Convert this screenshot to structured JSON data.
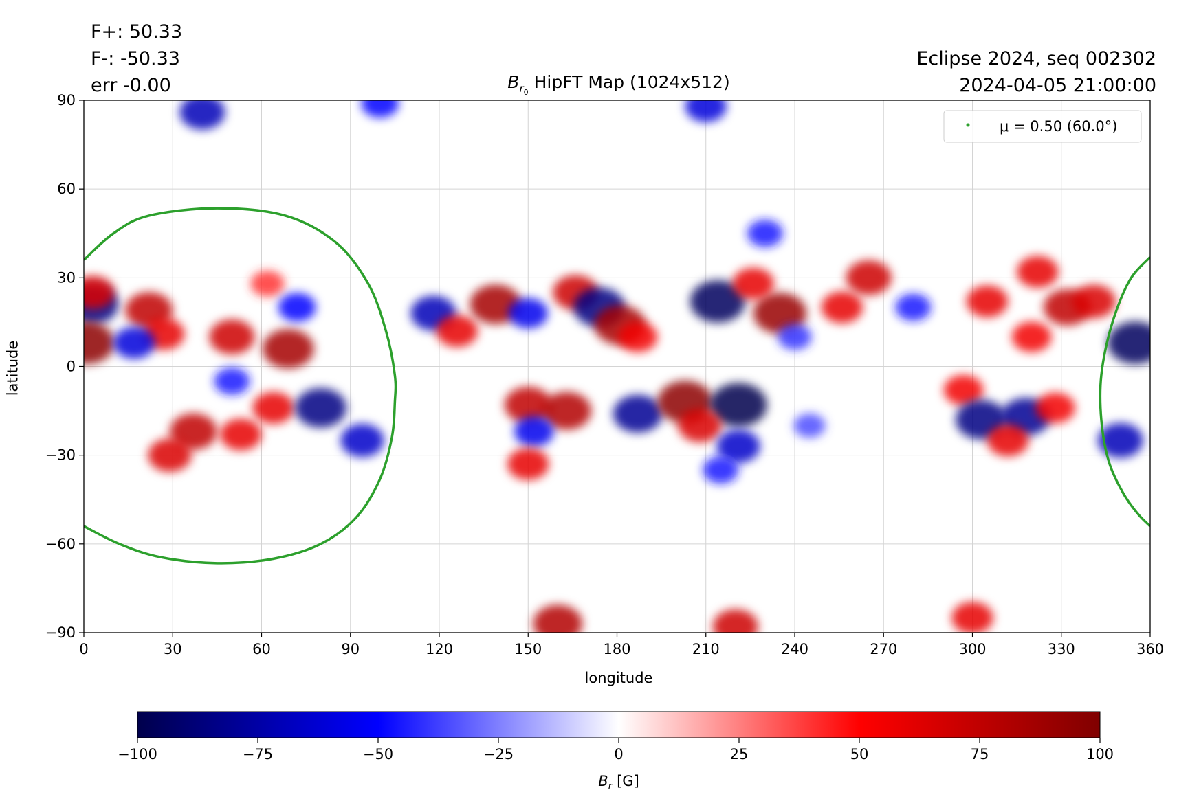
{
  "header": {
    "fplus": "F+: 50.33",
    "fminus": "F-: -50.33",
    "err": "err -0.00",
    "event": "Eclipse 2024, seq 002302",
    "datetime": "2024-04-05 21:00:00",
    "title_symbol": "B",
    "title_sub": "r",
    "title_subsub": "0",
    "title_rest": " HipFT Map (1024x512)"
  },
  "chart_data": {
    "type": "heatmap",
    "xlabel": "longitude",
    "ylabel": "latitude",
    "xlim": [
      0,
      360
    ],
    "ylim": [
      -90,
      90
    ],
    "xticks": [
      0,
      30,
      60,
      90,
      120,
      150,
      180,
      210,
      240,
      270,
      300,
      330,
      360
    ],
    "yticks": [
      90,
      60,
      30,
      0,
      -30,
      -60,
      -90
    ],
    "ytick_labels": [
      "90",
      "60",
      "30",
      "0",
      "−30",
      "−60",
      "−90"
    ],
    "grid": true,
    "legend": {
      "placement": "top-right",
      "label": "μ = 0.50 (60.0°)",
      "color": "#2ca02c"
    },
    "contour": {
      "name": "μ = 0.50 (60.0°)",
      "color": "#2ca02c",
      "segments": [
        {
          "points": [
            [
              0,
              36
            ],
            [
              10,
              45
            ],
            [
              22,
              51
            ],
            [
              45,
              53.5
            ],
            [
              68,
              51
            ],
            [
              85,
              42
            ],
            [
              96,
              28
            ],
            [
              102,
              12
            ],
            [
              105,
              -3
            ],
            [
              105,
              -12
            ],
            [
              104,
              -24
            ],
            [
              100,
              -38
            ],
            [
              92,
              -51
            ],
            [
              80,
              -60
            ],
            [
              64,
              -65
            ],
            [
              45,
              -66.5
            ],
            [
              26,
              -64.5
            ],
            [
              12,
              -60
            ],
            [
              0,
              -54
            ]
          ]
        },
        {
          "points": [
            [
              360,
              37
            ],
            [
              353,
              29
            ],
            [
              347,
              14
            ],
            [
              343.5,
              -3
            ],
            [
              343.5,
              -18
            ],
            [
              346,
              -32
            ],
            [
              351,
              -43
            ],
            [
              356,
              -50
            ],
            [
              360,
              -54
            ]
          ]
        }
      ]
    },
    "colorbar": {
      "label_symbol": "B",
      "label_sub": "r",
      "label_unit": " [G]",
      "range": [
        -100,
        100
      ],
      "ticks": [
        -100,
        -75,
        -50,
        -25,
        0,
        25,
        50,
        75,
        100
      ],
      "tick_labels": [
        "−100",
        "−75",
        "−50",
        "−25",
        "0",
        "25",
        "50",
        "75",
        "100"
      ],
      "colormap": "seismic",
      "colors": [
        "#00004c",
        "#0000ff",
        "#ffffff",
        "#ff0000",
        "#800000"
      ]
    },
    "regions": [
      {
        "lon": 3,
        "lat": 21,
        "field": -85
      },
      {
        "lon": 1,
        "lat": 8,
        "field": 95
      },
      {
        "lon": 3,
        "lat": 25,
        "field": 65
      },
      {
        "lon": 22,
        "lat": 19,
        "field": 75
      },
      {
        "lon": 27,
        "lat": 11,
        "field": 60
      },
      {
        "lon": 17,
        "lat": 8,
        "field": -60
      },
      {
        "lon": 50,
        "lat": 10,
        "field": 70
      },
      {
        "lon": 69,
        "lat": 6,
        "field": 85
      },
      {
        "lon": 62,
        "lat": 28,
        "field": 40
      },
      {
        "lon": 72,
        "lat": 20,
        "field": -50
      },
      {
        "lon": 37,
        "lat": -22,
        "field": 75
      },
      {
        "lon": 29,
        "lat": -30,
        "field": 65
      },
      {
        "lon": 53,
        "lat": -23,
        "field": 60
      },
      {
        "lon": 64,
        "lat": -14,
        "field": 60
      },
      {
        "lon": 80,
        "lat": -14,
        "field": -85
      },
      {
        "lon": 94,
        "lat": -25,
        "field": -65
      },
      {
        "lon": 50,
        "lat": -5,
        "field": -45
      },
      {
        "lon": 118,
        "lat": 18,
        "field": -70
      },
      {
        "lon": 126,
        "lat": 12,
        "field": 60
      },
      {
        "lon": 139,
        "lat": 21,
        "field": 85
      },
      {
        "lon": 150,
        "lat": 18,
        "field": -55
      },
      {
        "lon": 166,
        "lat": 25,
        "field": 70
      },
      {
        "lon": 174,
        "lat": 20,
        "field": -85
      },
      {
        "lon": 181,
        "lat": 14,
        "field": 85
      },
      {
        "lon": 187,
        "lat": 10,
        "field": 55
      },
      {
        "lon": 214,
        "lat": 22,
        "field": -95
      },
      {
        "lon": 235,
        "lat": 18,
        "field": 90
      },
      {
        "lon": 226,
        "lat": 28,
        "field": 60
      },
      {
        "lon": 240,
        "lat": 10,
        "field": -40
      },
      {
        "lon": 256,
        "lat": 20,
        "field": 60
      },
      {
        "lon": 265,
        "lat": 30,
        "field": 70
      },
      {
        "lon": 230,
        "lat": 45,
        "field": -45
      },
      {
        "lon": 150,
        "lat": -13,
        "field": 75
      },
      {
        "lon": 163,
        "lat": -15,
        "field": 80
      },
      {
        "lon": 152,
        "lat": -22,
        "field": -55
      },
      {
        "lon": 150,
        "lat": -33,
        "field": 60
      },
      {
        "lon": 187,
        "lat": -16,
        "field": -80
      },
      {
        "lon": 203,
        "lat": -12,
        "field": 95
      },
      {
        "lon": 221,
        "lat": -13,
        "field": -100
      },
      {
        "lon": 208,
        "lat": -20,
        "field": 65
      },
      {
        "lon": 221,
        "lat": -27,
        "field": -65
      },
      {
        "lon": 215,
        "lat": -35,
        "field": -45
      },
      {
        "lon": 245,
        "lat": -20,
        "field": -35
      },
      {
        "lon": 280,
        "lat": 20,
        "field": -45
      },
      {
        "lon": 305,
        "lat": 22,
        "field": 60
      },
      {
        "lon": 320,
        "lat": 10,
        "field": 55
      },
      {
        "lon": 332,
        "lat": 20,
        "field": 75
      },
      {
        "lon": 322,
        "lat": 32,
        "field": 60
      },
      {
        "lon": 297,
        "lat": -8,
        "field": 55
      },
      {
        "lon": 303,
        "lat": -18,
        "field": -85
      },
      {
        "lon": 318,
        "lat": -17,
        "field": -80
      },
      {
        "lon": 312,
        "lat": -25,
        "field": 60
      },
      {
        "lon": 328,
        "lat": -14,
        "field": 55
      },
      {
        "lon": 355,
        "lat": 8,
        "field": -95
      },
      {
        "lon": 350,
        "lat": -25,
        "field": -70
      },
      {
        "lon": 341,
        "lat": 22,
        "field": 65
      },
      {
        "lon": 40,
        "lat": 86,
        "field": -70
      },
      {
        "lon": 210,
        "lat": 88,
        "field": -60
      },
      {
        "lon": 100,
        "lat": 89,
        "field": -50
      },
      {
        "lon": 160,
        "lat": -87,
        "field": 80
      },
      {
        "lon": 220,
        "lat": -88,
        "field": 70
      },
      {
        "lon": 300,
        "lat": -85,
        "field": 60
      }
    ]
  }
}
